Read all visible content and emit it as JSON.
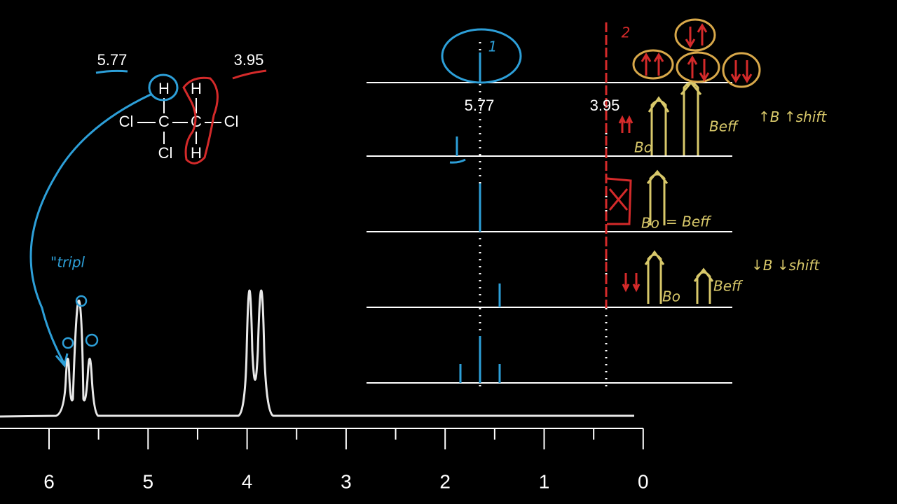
{
  "labels": {
    "left_shift": "5.77",
    "right_shift": "3.95"
  },
  "molecule": {
    "h_top_left": "H",
    "h_top_right": "H",
    "cl_left": "Cl",
    "c_left": "C",
    "c_right": "C",
    "cl_right": "Cl",
    "cl_bottom": "Cl",
    "h_bottom": "H"
  },
  "annotation": {
    "triplet": "\"tripl"
  },
  "diagram": {
    "peak_left": "5.77",
    "peak_right": "3.95",
    "count_left": "1",
    "count_right": "2",
    "row1": {
      "beff": "Beff",
      "b": "B",
      "shift": "shift",
      "bo": "Bo"
    },
    "row2": {
      "bo": "Bo",
      "beff": "= Beff"
    },
    "row3": {
      "bo": "Bo",
      "beff": "Beff",
      "b": "B",
      "shift": "shift"
    }
  },
  "axis": {
    "ticks": [
      "6",
      "5",
      "4",
      "3",
      "2",
      "1",
      "0"
    ]
  }
}
